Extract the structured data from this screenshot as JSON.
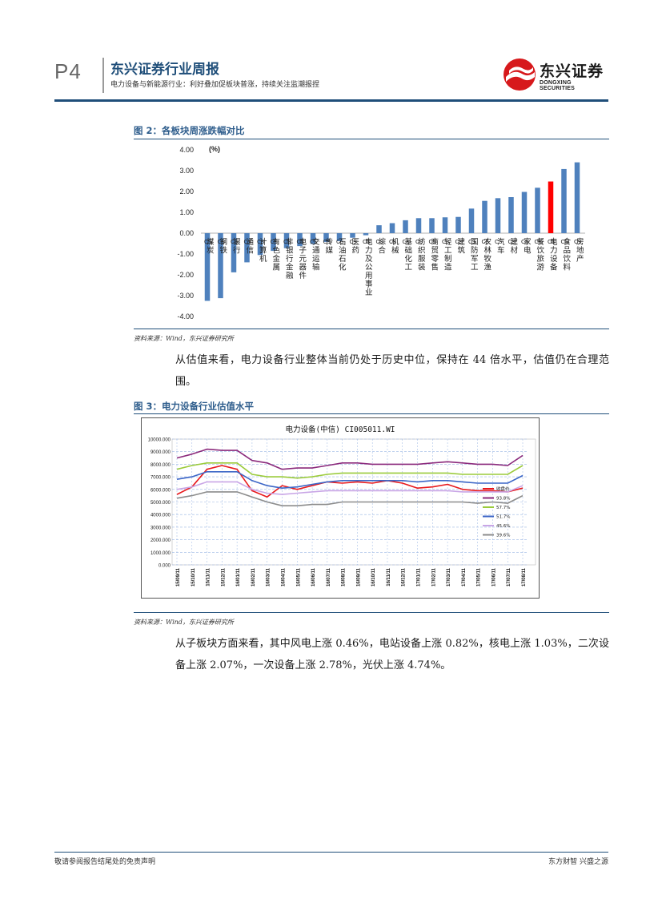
{
  "header": {
    "page_label": "P4",
    "report_title": "东兴证券行业周报",
    "report_subtitle": "电力设备与新能源行业：利好叠加促板块普涨，持续关注监潮报捏",
    "logo_cn": "东兴证券",
    "logo_en": "DONGXING SECURITIES",
    "brand_color": "#d7191c",
    "accent_color": "#1f4e79"
  },
  "figure2": {
    "title": "图 2：各板块周涨跌幅对比",
    "source": "资料来源：Wind，东兴证券研究所"
  },
  "paragraph1": "从估值来看，电力设备行业整体当前仍处于历史中位，保持在 44 倍水平，估值仍在合理范围。",
  "figure3": {
    "title": "图 3：电力设备行业估值水平",
    "source": "资料来源：Wind，东兴证券研究所"
  },
  "paragraph2": "从子板块方面来看，其中风电上涨 0.46%，电站设备上涨 0.82%，核电上涨 1.03%，二次设备上涨 2.07%，一次设备上涨 2.78%，光伏上涨 4.74%。",
  "footer": {
    "left": "敬请参阅报告结尾处的免责声明",
    "right": "东方财智 兴盛之源"
  },
  "chart_data": [
    {
      "type": "bar",
      "title": "",
      "ylabel": "(%)",
      "ylim": [
        -4,
        4
      ],
      "yticks": [
        "4.00",
        "3.00",
        "2.00",
        "1.00",
        "0.00",
        "-1.00",
        "-2.00",
        "-3.00",
        "-4.00"
      ],
      "categories": [
        "CS煤炭",
        "CS钢铁",
        "CS银行",
        "CS通信",
        "CS计算机",
        "CS有色金属",
        "CS非银行金融",
        "CS电子元器件",
        "CS交通运输",
        "CS传媒",
        "CS石油石化",
        "CS医药",
        "CS电力及公用事业",
        "CS综合",
        "CS机械",
        "CS基础化工",
        "CS纺织服装",
        "CS商贸零售",
        "CS轻工制造",
        "CS建筑",
        "CS国防军工",
        "CS农林牧渔",
        "CS汽车",
        "CS建材",
        "CS家电",
        "CS餐饮旅游",
        "CS电力设备",
        "CS食品饮料",
        "CS房地产"
      ],
      "values": [
        -3.25,
        -3.12,
        -1.88,
        -1.4,
        -1.05,
        -0.85,
        -0.72,
        -0.62,
        -0.52,
        -0.42,
        -0.38,
        -0.22,
        -0.1,
        0.38,
        0.48,
        0.62,
        0.72,
        0.72,
        0.76,
        0.78,
        1.18,
        1.55,
        1.68,
        1.73,
        1.98,
        2.18,
        2.48,
        3.08,
        3.4
      ],
      "highlight": "CS电力设备",
      "bar_color": "#4f81bd",
      "highlight_color": "#ff0000"
    },
    {
      "type": "line",
      "title": "电力设备(中信) CI005011.WI",
      "ylim": [
        0,
        10000
      ],
      "yticks": [
        "10000.000",
        "9000.000",
        "8000.000",
        "7000.000",
        "6000.000",
        "5000.000",
        "4000.000",
        "3000.000",
        "2000.000",
        "1000.000",
        "0.000"
      ],
      "x": [
        "15/09/11",
        "15/10/11",
        "15/11/11",
        "15/12/11",
        "16/01/11",
        "16/02/11",
        "16/03/11",
        "16/04/11",
        "16/05/11",
        "16/06/11",
        "16/07/11",
        "16/08/11",
        "16/09/11",
        "16/10/11",
        "16/11/11",
        "16/12/11",
        "17/01/11",
        "17/02/11",
        "17/03/11",
        "17/04/11",
        "17/05/11",
        "17/06/11",
        "17/07/11",
        "17/08/11"
      ],
      "series": [
        {
          "name": "收盘价",
          "color": "#e8191c",
          "values": [
            5600,
            6200,
            7600,
            7900,
            7600,
            5900,
            5400,
            6300,
            6000,
            6300,
            6600,
            6500,
            6600,
            6500,
            6700,
            6500,
            6100,
            6200,
            6400,
            6000,
            5900,
            5900,
            5800,
            6100
          ]
        },
        {
          "name": "93.8%",
          "color": "#8b2a7c",
          "values": [
            8500,
            8800,
            9200,
            9100,
            9100,
            8300,
            8100,
            7600,
            7700,
            7700,
            7900,
            8100,
            8100,
            8000,
            8000,
            8000,
            8000,
            8100,
            8200,
            8100,
            8000,
            8000,
            7900,
            8700
          ]
        },
        {
          "name": "57.7%",
          "color": "#9bcb3b",
          "values": [
            7600,
            7900,
            8100,
            8100,
            8100,
            7200,
            7000,
            7000,
            6900,
            7000,
            7200,
            7300,
            7300,
            7300,
            7300,
            7300,
            7300,
            7300,
            7300,
            7200,
            7200,
            7200,
            7200,
            7900
          ]
        },
        {
          "name": "51.7%",
          "color": "#3c66c7",
          "values": [
            6800,
            7000,
            7400,
            7400,
            7400,
            6700,
            6300,
            6100,
            6200,
            6400,
            6600,
            6700,
            6700,
            6700,
            6700,
            6700,
            6600,
            6700,
            6700,
            6600,
            6500,
            6500,
            6500,
            7100
          ]
        },
        {
          "name": "45.6%",
          "color": "#c9a6e6",
          "values": [
            6000,
            6200,
            6600,
            6600,
            6600,
            6000,
            5700,
            5600,
            5700,
            5800,
            5900,
            5900,
            5900,
            5900,
            5900,
            5900,
            5900,
            5900,
            5900,
            5800,
            5800,
            5800,
            5800,
            6300
          ]
        },
        {
          "name": "39.6%",
          "color": "#8c8c8c",
          "values": [
            5300,
            5500,
            5800,
            5800,
            5800,
            5400,
            5000,
            4700,
            4700,
            4800,
            4800,
            5000,
            5000,
            5000,
            5000,
            5000,
            5000,
            5000,
            5000,
            5000,
            4900,
            5000,
            4900,
            5500
          ]
        }
      ]
    }
  ]
}
